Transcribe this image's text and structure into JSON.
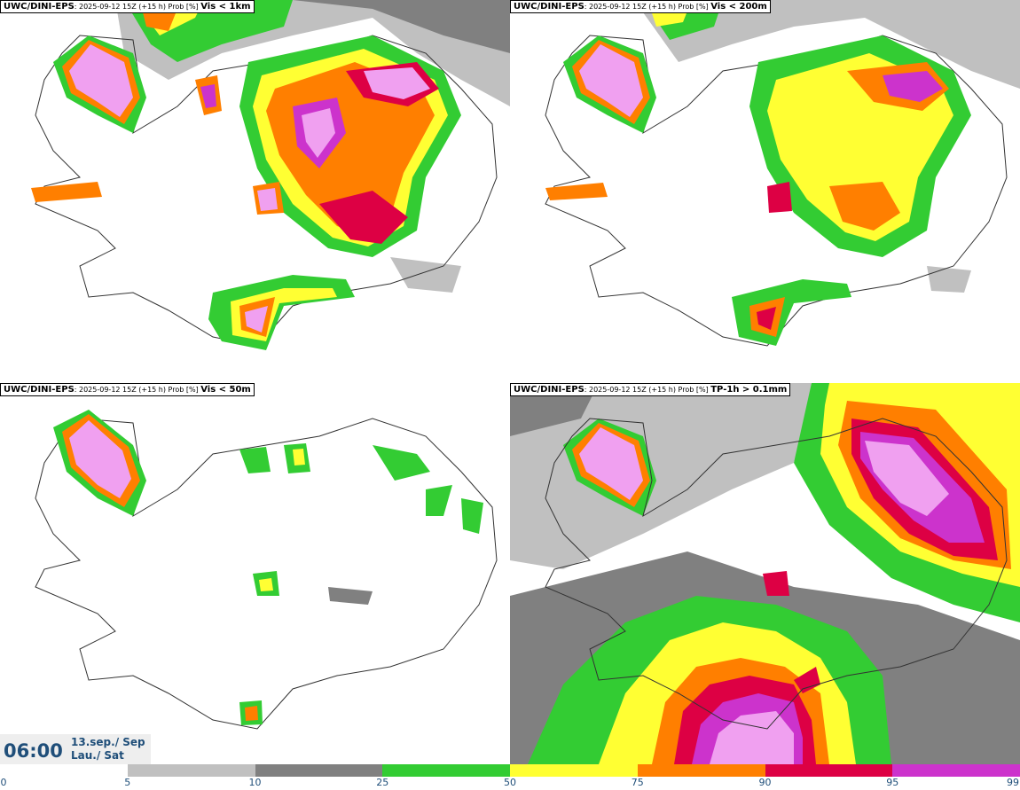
{
  "model": "UWC/DINI-EPS",
  "run_info": ": 2025-09-12 15Z (+15 h) Prob [%] ",
  "panels": [
    {
      "variable": "Vis < 1km"
    },
    {
      "variable": "Vis < 200m"
    },
    {
      "variable": "Vis < 50m"
    },
    {
      "variable": "TP-1h > 0.1mm"
    }
  ],
  "valid_time": "06:00",
  "valid_date": "13.sep./ Sep",
  "valid_day": "Lau./ Sat",
  "colorbar": {
    "ticks": [
      "0",
      "5",
      "10",
      "25",
      "50",
      "75",
      "90",
      "95",
      "99"
    ],
    "colors": [
      "#ffffff",
      "#c0c0c0",
      "#808080",
      "#33cc33",
      "#ffff33",
      "#ff7f00",
      "#dd0044",
      "#cc33cc",
      "#f0a0f0"
    ]
  }
}
